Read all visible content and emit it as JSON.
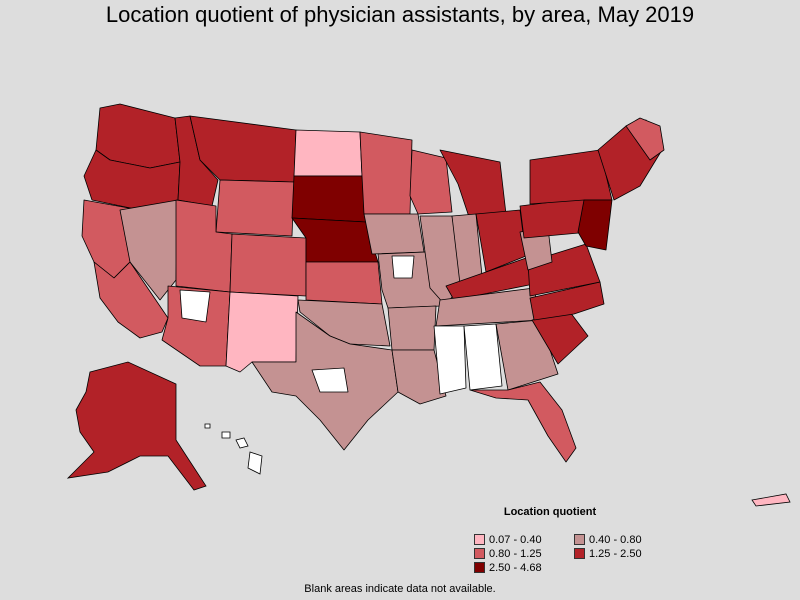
{
  "title": "Location quotient of physician assistants, by area, May 2019",
  "legend": {
    "title": "Location quotient",
    "items": [
      {
        "label": "0.07 - 0.40",
        "color": "#ffb6c1"
      },
      {
        "label": "0.40 - 0.80",
        "color": "#c49292"
      },
      {
        "label": "0.80 - 1.25",
        "color": "#d25a60"
      },
      {
        "label": "1.25 - 2.50",
        "color": "#b22228"
      },
      {
        "label": "2.50 - 4.68",
        "color": "#7f0000"
      }
    ]
  },
  "footnote": "Blank areas indicate data not available.",
  "no_data_color": "#ffffff",
  "background_color": "#dddddd"
}
